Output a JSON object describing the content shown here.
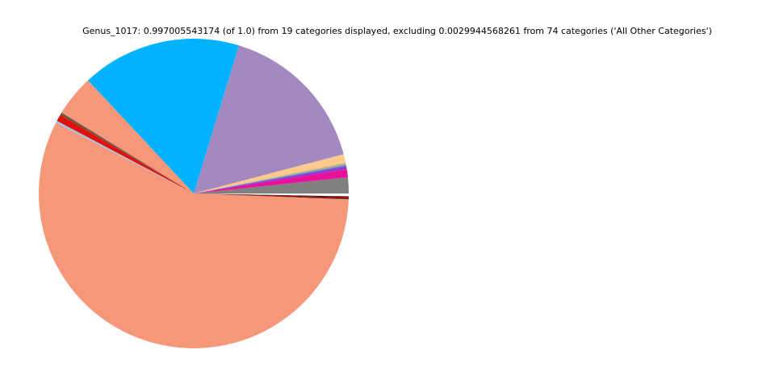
{
  "chart_data": {
    "type": "pie",
    "title": "Genus_1017: 0.997005543174 (of 1.0) from 19 categories displayed, excluding 0.0029944568261 from 74 categories ('All Other Categories')",
    "start_angle": 0,
    "values": [
      0.0167,
      0.0083,
      0.0028,
      0.0014,
      0.0014,
      0.0014,
      0.0089,
      0.162,
      0.1667,
      0.043,
      0.0014,
      0.0014,
      0.0069,
      0.0014,
      0.0008,
      0.5695,
      0.0006,
      0.0019,
      0.0006
    ],
    "colors": [
      "#808080",
      "#e8119a",
      "#9932cc",
      "#4f6fe0",
      "#a0a0a0",
      "#c8b27a",
      "#fdca8e",
      "#a389c0",
      "#00b2ff",
      "#f7977a",
      "#555555",
      "#8b4513",
      "#e0100f",
      "#87cefa",
      "#b0b0b0",
      "#f7977a",
      "#333333",
      "#a00000",
      "#111111"
    ]
  }
}
